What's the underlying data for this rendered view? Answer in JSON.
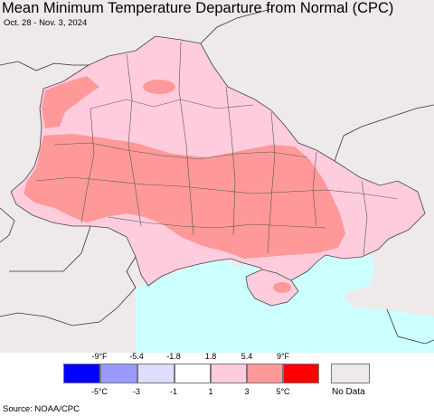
{
  "title": "Mean Minimum Temperature Departure from Normal (CPC)",
  "subtitle": "Oct. 28 - Nov. 3, 2024",
  "legend": {
    "fahrenheit_ticks": [
      "-9°F",
      "-5.4",
      "-1.8",
      "1.8",
      "5.4",
      "9°F"
    ],
    "celsius_ticks": [
      "-5°C",
      "-3",
      "-1",
      "1",
      "3",
      "5°C"
    ],
    "colors": [
      "#0000ff",
      "#9999ff",
      "#ddddff",
      "#ffffff",
      "#ffccdd",
      "#ff9999",
      "#ff0000"
    ],
    "no_data_color": "#eeeaea",
    "no_data_label": "No Data"
  },
  "map_colors": {
    "no_data": "#eeeaea",
    "sea": "#ccffff",
    "warm_1_3C": "#ffccdd",
    "warm_3_5C": "#ff9999"
  },
  "source": "Source: NOAA/CPC"
}
